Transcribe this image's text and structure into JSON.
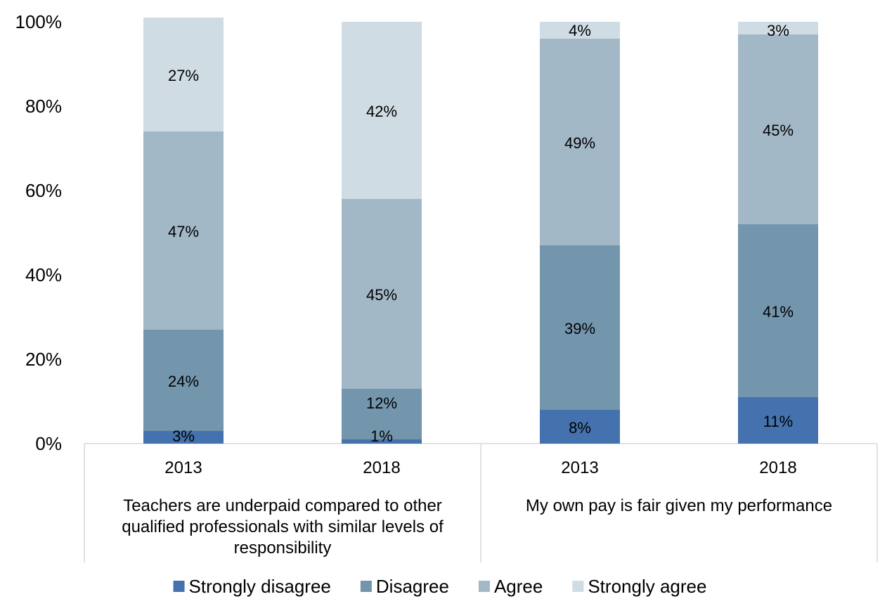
{
  "chart_data": {
    "type": "bar",
    "stacked": true,
    "percent_scale": true,
    "title": "",
    "xlabel": "",
    "ylabel": "",
    "ylim": [
      0,
      100
    ],
    "y_ticks": [
      "0%",
      "20%",
      "40%",
      "60%",
      "80%",
      "100%"
    ],
    "grid": false,
    "legend_position": "bottom",
    "groups": [
      {
        "label": "Teachers are underpaid compared to other qualified professionals with similar levels of responsibility",
        "label_lines": [
          "Teachers are underpaid compared to other",
          "qualified professionals with similar levels of",
          "responsibility"
        ],
        "categories": [
          "2013",
          "2018"
        ]
      },
      {
        "label": "My own pay is fair given my performance",
        "label_lines": [
          "My own pay is fair given my performance"
        ],
        "categories": [
          "2013",
          "2018"
        ]
      }
    ],
    "categories": [
      "2013",
      "2018",
      "2013",
      "2018"
    ],
    "series": [
      {
        "name": "Strongly disagree",
        "color": "#4472ae",
        "values": [
          3,
          1,
          8,
          11
        ],
        "labels": [
          "3%",
          "1%",
          "8%",
          "11%"
        ]
      },
      {
        "name": "Disagree",
        "color": "#7396ad",
        "values": [
          24,
          12,
          39,
          41
        ],
        "labels": [
          "24%",
          "12%",
          "39%",
          "41%"
        ]
      },
      {
        "name": "Agree",
        "color": "#a3b8c7",
        "values": [
          47,
          45,
          49,
          45
        ],
        "labels": [
          "47%",
          "45%",
          "49%",
          "45%"
        ]
      },
      {
        "name": "Strongly agree",
        "color": "#d0dce4",
        "values": [
          27,
          42,
          4,
          3
        ],
        "labels": [
          "27%",
          "42%",
          "4%",
          "3%"
        ]
      }
    ]
  }
}
